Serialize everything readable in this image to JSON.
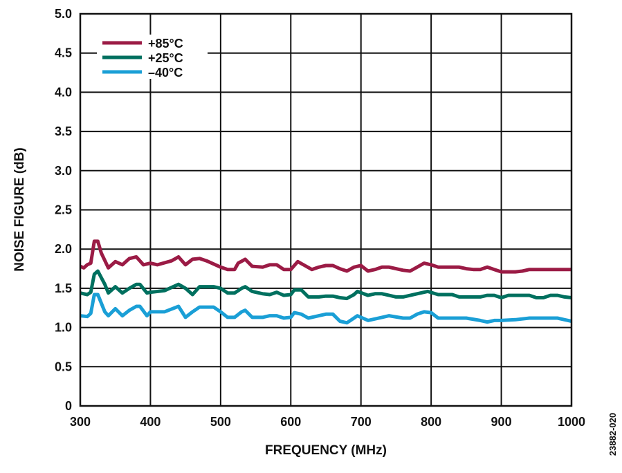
{
  "chart_data": {
    "type": "line",
    "title": "",
    "xlabel": "FREQUENCY (MHz)",
    "ylabel": "NOISE FIGURE (dB)",
    "xlim": [
      300,
      1000
    ],
    "ylim": [
      0,
      5.0
    ],
    "xticks": [
      "300",
      "400",
      "500",
      "600",
      "700",
      "800",
      "900",
      "1000"
    ],
    "yticks": [
      "0",
      "0.5",
      "1.0",
      "1.5",
      "2.0",
      "2.5",
      "3.0",
      "3.5",
      "4.0",
      "4.5",
      "5.0"
    ],
    "grid": true,
    "legend_position": "top-left",
    "figure_id": "23882-020",
    "series": [
      {
        "name": "+85°C",
        "color": "#9b1b45",
        "x": [
          300,
          305,
          310,
          315,
          320,
          325,
          330,
          340,
          350,
          360,
          370,
          380,
          390,
          400,
          410,
          430,
          440,
          450,
          460,
          470,
          480,
          500,
          510,
          520,
          525,
          535,
          545,
          560,
          570,
          580,
          590,
          600,
          610,
          620,
          630,
          640,
          650,
          660,
          670,
          680,
          690,
          700,
          710,
          720,
          730,
          740,
          760,
          770,
          780,
          790,
          800,
          810,
          820,
          830,
          840,
          850,
          860,
          870,
          880,
          890,
          900,
          910,
          920,
          930,
          940,
          1000
        ],
        "y": [
          1.78,
          1.76,
          1.8,
          1.82,
          2.1,
          2.1,
          1.95,
          1.76,
          1.84,
          1.8,
          1.88,
          1.9,
          1.8,
          1.82,
          1.8,
          1.85,
          1.9,
          1.8,
          1.87,
          1.88,
          1.85,
          1.77,
          1.74,
          1.74,
          1.82,
          1.87,
          1.78,
          1.77,
          1.8,
          1.8,
          1.74,
          1.74,
          1.84,
          1.79,
          1.74,
          1.77,
          1.79,
          1.79,
          1.75,
          1.72,
          1.77,
          1.79,
          1.72,
          1.74,
          1.77,
          1.77,
          1.73,
          1.72,
          1.77,
          1.82,
          1.8,
          1.77,
          1.77,
          1.77,
          1.77,
          1.75,
          1.74,
          1.74,
          1.77,
          1.74,
          1.71,
          1.71,
          1.71,
          1.72,
          1.74,
          1.74
        ]
      },
      {
        "name": "+25°C",
        "color": "#00705f",
        "x": [
          300,
          310,
          315,
          320,
          325,
          335,
          340,
          350,
          360,
          370,
          380,
          385,
          395,
          400,
          420,
          440,
          450,
          460,
          470,
          480,
          490,
          500,
          510,
          520,
          530,
          535,
          545,
          560,
          570,
          580,
          590,
          600,
          605,
          615,
          625,
          640,
          650,
          660,
          670,
          680,
          690,
          695,
          710,
          720,
          730,
          740,
          750,
          760,
          780,
          795,
          810,
          830,
          840,
          860,
          870,
          880,
          890,
          900,
          910,
          940,
          950,
          960,
          970,
          980,
          990,
          1000
        ],
        "y": [
          1.44,
          1.42,
          1.45,
          1.68,
          1.72,
          1.55,
          1.44,
          1.52,
          1.44,
          1.5,
          1.55,
          1.55,
          1.44,
          1.45,
          1.47,
          1.55,
          1.5,
          1.42,
          1.52,
          1.52,
          1.52,
          1.5,
          1.44,
          1.44,
          1.5,
          1.52,
          1.46,
          1.43,
          1.42,
          1.45,
          1.41,
          1.42,
          1.48,
          1.48,
          1.39,
          1.39,
          1.4,
          1.4,
          1.38,
          1.37,
          1.42,
          1.46,
          1.41,
          1.43,
          1.43,
          1.41,
          1.39,
          1.39,
          1.43,
          1.46,
          1.42,
          1.42,
          1.39,
          1.39,
          1.39,
          1.41,
          1.41,
          1.38,
          1.41,
          1.41,
          1.38,
          1.38,
          1.41,
          1.41,
          1.39,
          1.38
        ]
      },
      {
        "name": "–40°C",
        "color": "#1a9fd6",
        "x": [
          300,
          310,
          315,
          320,
          325,
          335,
          340,
          350,
          360,
          370,
          380,
          385,
          395,
          400,
          420,
          440,
          450,
          460,
          470,
          490,
          500,
          510,
          520,
          530,
          535,
          545,
          560,
          570,
          580,
          590,
          600,
          605,
          615,
          625,
          640,
          650,
          660,
          670,
          680,
          690,
          695,
          710,
          730,
          740,
          760,
          770,
          780,
          790,
          800,
          810,
          830,
          850,
          870,
          880,
          890,
          900,
          920,
          940,
          960,
          980,
          990,
          1000
        ],
        "y": [
          1.15,
          1.14,
          1.18,
          1.42,
          1.42,
          1.2,
          1.15,
          1.24,
          1.15,
          1.22,
          1.27,
          1.27,
          1.15,
          1.2,
          1.2,
          1.27,
          1.13,
          1.2,
          1.26,
          1.26,
          1.2,
          1.13,
          1.13,
          1.2,
          1.22,
          1.13,
          1.13,
          1.15,
          1.15,
          1.12,
          1.13,
          1.19,
          1.17,
          1.12,
          1.15,
          1.17,
          1.17,
          1.08,
          1.06,
          1.12,
          1.15,
          1.09,
          1.13,
          1.15,
          1.12,
          1.12,
          1.17,
          1.2,
          1.19,
          1.12,
          1.12,
          1.12,
          1.09,
          1.07,
          1.09,
          1.09,
          1.1,
          1.12,
          1.12,
          1.12,
          1.1,
          1.08
        ]
      }
    ]
  }
}
